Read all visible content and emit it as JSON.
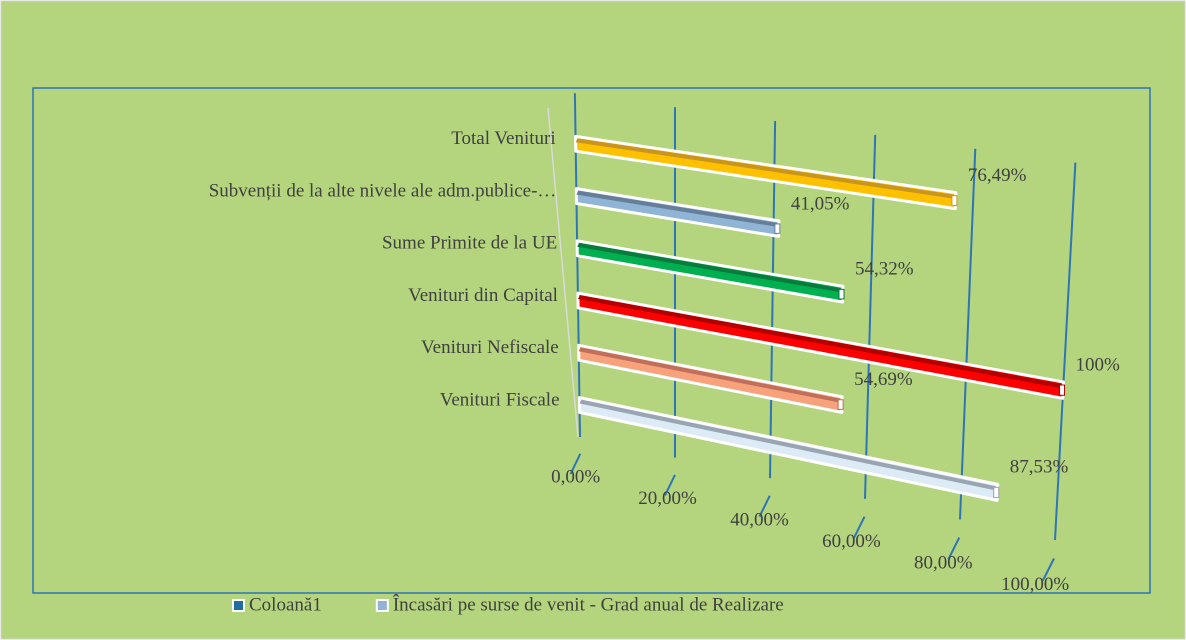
{
  "chart_data": {
    "type": "bar3d",
    "categories": [
      "Total Venituri",
      "Subvenții de la alte nivele ale adm.publice-…",
      "Sume Primite de la UE",
      "Venituri din Capital",
      "Venituri Nefiscale",
      "Venituri Fiscale"
    ],
    "series": [
      {
        "name": "Încasări pe surse de venit - Grad anual de Realizare",
        "color": "#8fb4d6",
        "values": [
          76.49,
          41.05,
          54.32,
          100,
          54.69,
          87.53
        ],
        "value_labels": [
          "76,49%",
          "41,05%",
          "54,32%",
          "100%",
          "54,69%",
          "87,53%"
        ],
        "colors": [
          "#ffc000",
          "#8fb4d6",
          "#00b050",
          "#ff0000",
          "#f8a27c",
          "#ddebf7"
        ],
        "top_colors": [
          "#c8961e",
          "#667f99",
          "#0a7a3d",
          "#b00000",
          "#c0705a",
          "#9aa5b2"
        ]
      }
    ],
    "legend": [
      {
        "name": "Coloană1",
        "color": "#1f6e9c"
      },
      {
        "name": "Încasări pe surse de venit - Grad anual de Realizare",
        "color": "#8fb4d6"
      }
    ],
    "xlim": [
      0,
      100
    ],
    "xticks": [
      {
        "value": 0,
        "label": "0,00%"
      },
      {
        "value": 20,
        "label": "20,00%"
      },
      {
        "value": 40,
        "label": "40,00%"
      },
      {
        "value": 60,
        "label": "60,00%"
      },
      {
        "value": 80,
        "label": "80,00%"
      },
      {
        "value": 100,
        "label": "100,00%"
      }
    ],
    "grid": true
  }
}
